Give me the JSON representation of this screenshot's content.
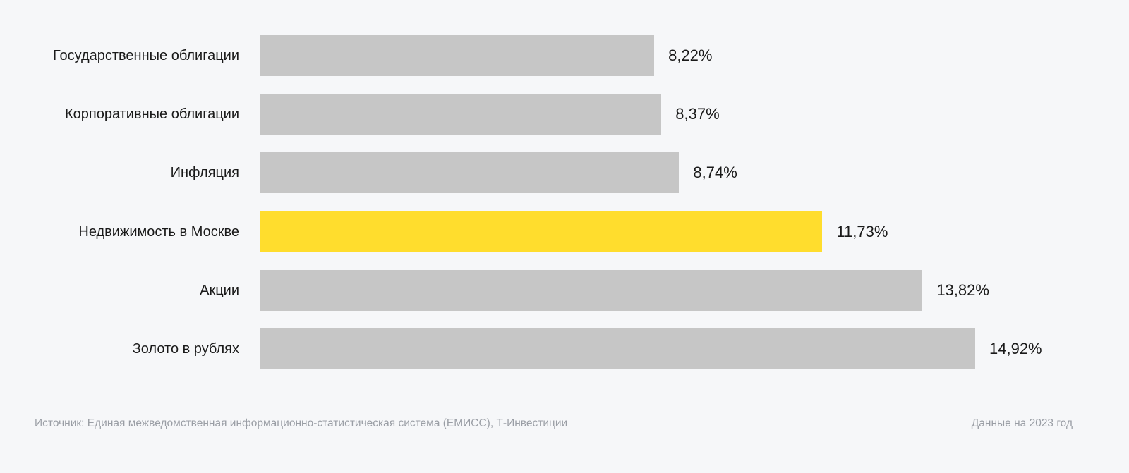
{
  "chart_data": {
    "type": "bar",
    "orientation": "horizontal",
    "categories": [
      "Государственные облигации",
      "Корпоративные облигации",
      "Инфляция",
      "Недвижимость в Москве",
      "Акции",
      "Золото в рублях"
    ],
    "values": [
      8.22,
      8.37,
      8.74,
      11.73,
      13.82,
      14.92
    ],
    "value_labels": [
      "8,22%",
      "8,37%",
      "8,74%",
      "11,73%",
      "13,82%",
      "14,92%"
    ],
    "highlight_index": 3,
    "colors": {
      "default": "#c6c6c6",
      "highlight": "#ffdd2d"
    },
    "title": "",
    "xlabel": "",
    "ylabel": "",
    "xlim": [
      0,
      15
    ],
    "grid": false
  },
  "footer": {
    "source": "Источник: Единая межведомственная информационно-статистическая система (ЕМИСС), Т-Инвестиции",
    "date_note": "Данные на 2023 год"
  }
}
